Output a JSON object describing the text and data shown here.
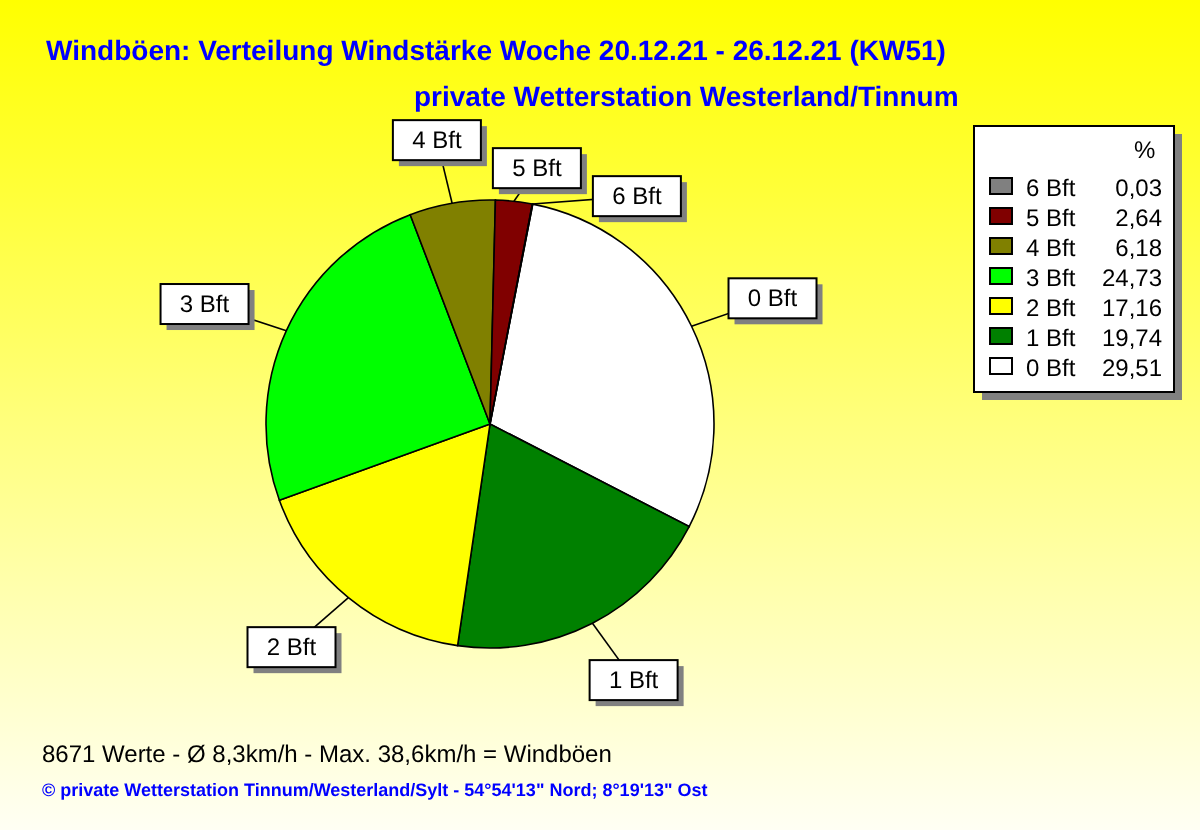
{
  "chart_data": {
    "type": "pie",
    "title": "Windböen: Verteilung Windstärke  Woche 20.12.21 - 26.12.21 (KW51)",
    "subtitle": "private Wetterstation Westerland/Tinnum",
    "legend_title": "%",
    "legend": "top right",
    "categories": [
      "0 Bft",
      "1 Bft",
      "2 Bft",
      "3 Bft",
      "4 Bft",
      "5 Bft",
      "6 Bft"
    ],
    "values": [
      29.51,
      19.74,
      17.16,
      24.73,
      6.18,
      2.64,
      0.03
    ],
    "value_labels": [
      "29,51",
      "19,74",
      "17,16",
      "24,73",
      "6,18",
      "2,64",
      "0,03"
    ],
    "colors": [
      "#ffffff",
      "#008000",
      "#ffff00",
      "#00ff00",
      "#808000",
      "#800000",
      "#808080"
    ],
    "annotations": [
      "8671 Werte   -   Ø 8,3km/h  -  Max. 38,6km/h = Windböen",
      "© private Wetterstation Tinnum/Westerland/Sylt   -   54°54'13\" Nord; 8°19'13\" Ost"
    ]
  }
}
